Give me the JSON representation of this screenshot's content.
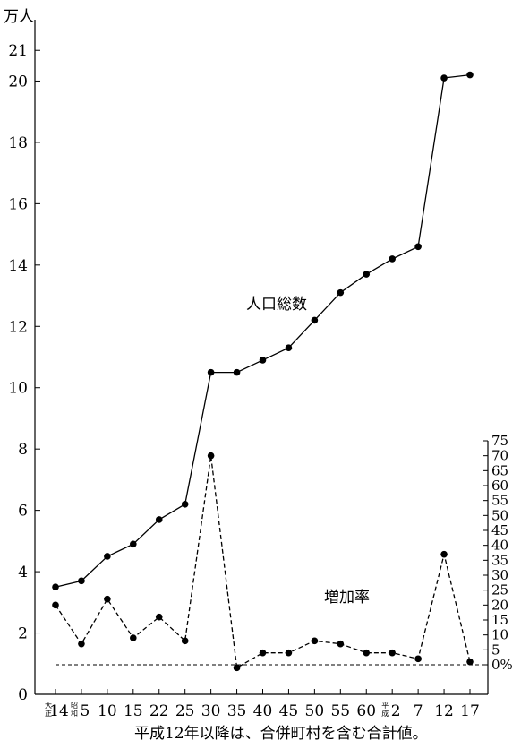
{
  "chart_data": {
    "type": "line",
    "left_axis": {
      "unit_label": "万人",
      "ticks": [
        0,
        2,
        4,
        6,
        8,
        10,
        12,
        14,
        16,
        18,
        20
      ],
      "extra_ticks": [
        21
      ],
      "range": [
        0,
        22
      ]
    },
    "right_axis": {
      "ticks": [
        0,
        5,
        10,
        15,
        20,
        25,
        30,
        35,
        40,
        45,
        50,
        55,
        60,
        65,
        70,
        75
      ],
      "last_label": "0%",
      "range": [
        0,
        75
      ]
    },
    "categories": [
      {
        "label": "14",
        "era": [
          "大",
          "正"
        ]
      },
      {
        "label": "5",
        "era": [
          "昭",
          "和"
        ]
      },
      {
        "label": "10"
      },
      {
        "label": "15"
      },
      {
        "label": "22"
      },
      {
        "label": "25"
      },
      {
        "label": "30"
      },
      {
        "label": "35"
      },
      {
        "label": "40"
      },
      {
        "label": "45"
      },
      {
        "label": "50"
      },
      {
        "label": "55"
      },
      {
        "label": "60"
      },
      {
        "label": "2",
        "era": [
          "平",
          "成"
        ]
      },
      {
        "label": "7"
      },
      {
        "label": "12"
      },
      {
        "label": "17"
      }
    ],
    "series": [
      {
        "name": "人口総数",
        "axis": "left",
        "style": "solid",
        "values": [
          3.5,
          3.7,
          4.5,
          4.9,
          5.7,
          6.2,
          10.5,
          10.5,
          10.9,
          11.3,
          12.2,
          13.1,
          13.7,
          14.2,
          14.6,
          20.1,
          20.2
        ]
      },
      {
        "name": "増加率",
        "axis": "right",
        "style": "dashed",
        "values": [
          20,
          7,
          22,
          9,
          16,
          8,
          70,
          -1,
          4,
          4,
          8,
          7,
          4,
          4,
          2,
          37,
          1
        ]
      }
    ]
  },
  "footnote": "平成12年以降は、合併町村を含む合計値。"
}
